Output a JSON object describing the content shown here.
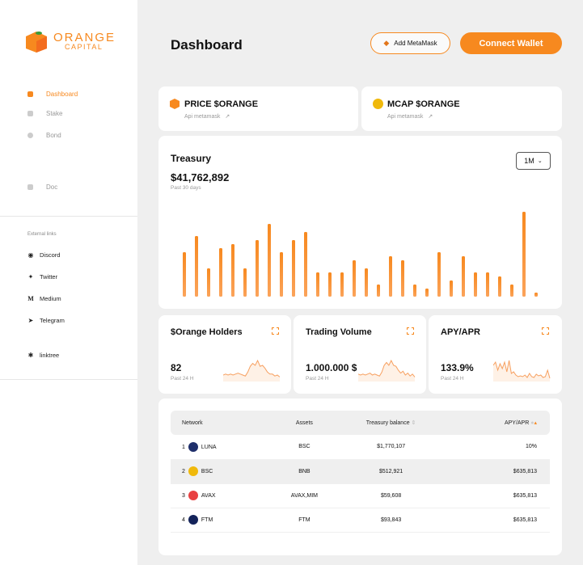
{
  "brand": {
    "name": "ORANGE",
    "sub": "CAPITAL"
  },
  "sidebar": {
    "items": [
      {
        "label": "Dashboard",
        "icon": "grid-icon"
      },
      {
        "label": "Stake",
        "icon": "stake-icon"
      },
      {
        "label": "Bond",
        "icon": "bond-icon"
      },
      {
        "label": "Doc",
        "icon": "doc-icon"
      }
    ],
    "external_label": "External links",
    "links": [
      {
        "label": "Discord",
        "icon": "discord-icon"
      },
      {
        "label": "Twitter",
        "icon": "twitter-icon"
      },
      {
        "label": "Medium",
        "icon": "medium-icon"
      },
      {
        "label": "Telegram",
        "icon": "telegram-icon"
      },
      {
        "label": "linktree",
        "icon": "linktree-icon"
      }
    ]
  },
  "header": {
    "title": "Dashboard",
    "add_metamask": "Add MetaMask",
    "connect_wallet": "Connect Wallet"
  },
  "price_card": {
    "title": "PRICE $ORANGE",
    "sub": "Api metamask"
  },
  "mcap_card": {
    "title": "MCAP $ORANGE",
    "sub": "Api metamask"
  },
  "treasury": {
    "title": "Treasury",
    "value": "$41,762,892",
    "sub": "Past 30 days",
    "range": "1M"
  },
  "chart_data": {
    "type": "bar",
    "title": "Treasury",
    "values": [
      55,
      75,
      35,
      60,
      65,
      35,
      70,
      90,
      55,
      70,
      80,
      30,
      30,
      30,
      45,
      35,
      15,
      50,
      45,
      15,
      10,
      55,
      20,
      50,
      30,
      30,
      25,
      15,
      105,
      5
    ],
    "color": "#f7891f"
  },
  "stats": [
    {
      "title": "$Orange Holders",
      "value": "82",
      "sub": "Past 24 H",
      "spark": [
        5,
        6,
        5,
        6,
        5,
        6,
        7,
        6,
        5,
        4,
        8,
        14,
        17,
        15,
        20,
        14,
        15,
        12,
        8,
        6,
        6,
        4,
        5,
        3
      ]
    },
    {
      "title": "Trading Volume",
      "value": "1.000.000 $",
      "sub": "Past 24 H",
      "spark": [
        6,
        5,
        6,
        5,
        6,
        7,
        5,
        6,
        5,
        4,
        8,
        15,
        18,
        15,
        20,
        15,
        14,
        10,
        7,
        9,
        5,
        7,
        4,
        6,
        3
      ]
    },
    {
      "title": "APY/APR",
      "value": "133.9%",
      "sub": "Past 24 H",
      "spark": [
        18,
        22,
        12,
        20,
        14,
        22,
        10,
        24,
        8,
        10,
        6,
        4,
        5,
        4,
        6,
        3,
        8,
        4,
        3,
        7,
        5,
        6,
        3,
        4,
        12,
        2
      ]
    }
  ],
  "table": {
    "headers": [
      "Network",
      "Assets",
      "Treasury balance",
      "APY/APR"
    ],
    "rows": [
      {
        "n": "1",
        "network": "LUNA",
        "assets": "BSC",
        "balance": "$1,770,107",
        "apy": "10%",
        "color": "#1f2f6b"
      },
      {
        "n": "2",
        "network": "BSC",
        "assets": "BNB",
        "balance": "$512,921",
        "apy": "$635,813",
        "color": "#f0b90b"
      },
      {
        "n": "3",
        "network": "AVAX",
        "assets": "AVAX,MIM",
        "balance": "$59,608",
        "apy": "$635,813",
        "color": "#e84142"
      },
      {
        "n": "4",
        "network": "FTM",
        "assets": "FTM",
        "balance": "$93,843",
        "apy": "$635,813",
        "color": "#13235a"
      }
    ]
  }
}
